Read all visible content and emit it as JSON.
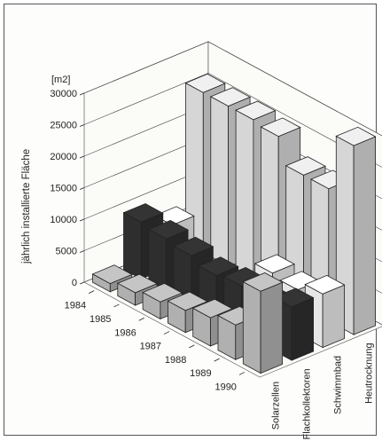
{
  "chart_data": {
    "type": "bar",
    "variant": "3d-grouped",
    "unit_label": "[m2]",
    "ylabel": "jährlich installierte Fläche",
    "ylim": [
      0,
      30000
    ],
    "yticks": [
      0,
      5000,
      10000,
      15000,
      20000,
      25000,
      30000
    ],
    "years": [
      "1984",
      "1985",
      "1986",
      "1987",
      "1988",
      "1989",
      "1990"
    ],
    "series": [
      {
        "name": "Solarzellen",
        "color": "#b0b0b0",
        "values": [
          1300,
          2000,
          2700,
          3500,
          4500,
          5500,
          13000
        ]
      },
      {
        "name": "Flachkollektoren",
        "color": "#2e2e2e",
        "values": [
          9000,
          8500,
          8000,
          7000,
          7500,
          7000,
          8500
        ]
      },
      {
        "name": "Schwimmbad",
        "color": "#e6e6e6",
        "values": [
          6500,
          1500,
          1000,
          500,
          7500,
          7000,
          8500
        ]
      },
      {
        "name": "Heutrocknung",
        "color": "#d6d6d6",
        "values": [
          25500,
          25500,
          25500,
          25000,
          21000,
          21000,
          30000
        ]
      }
    ],
    "legend": "category-axis labels",
    "grid": "back walls"
  }
}
